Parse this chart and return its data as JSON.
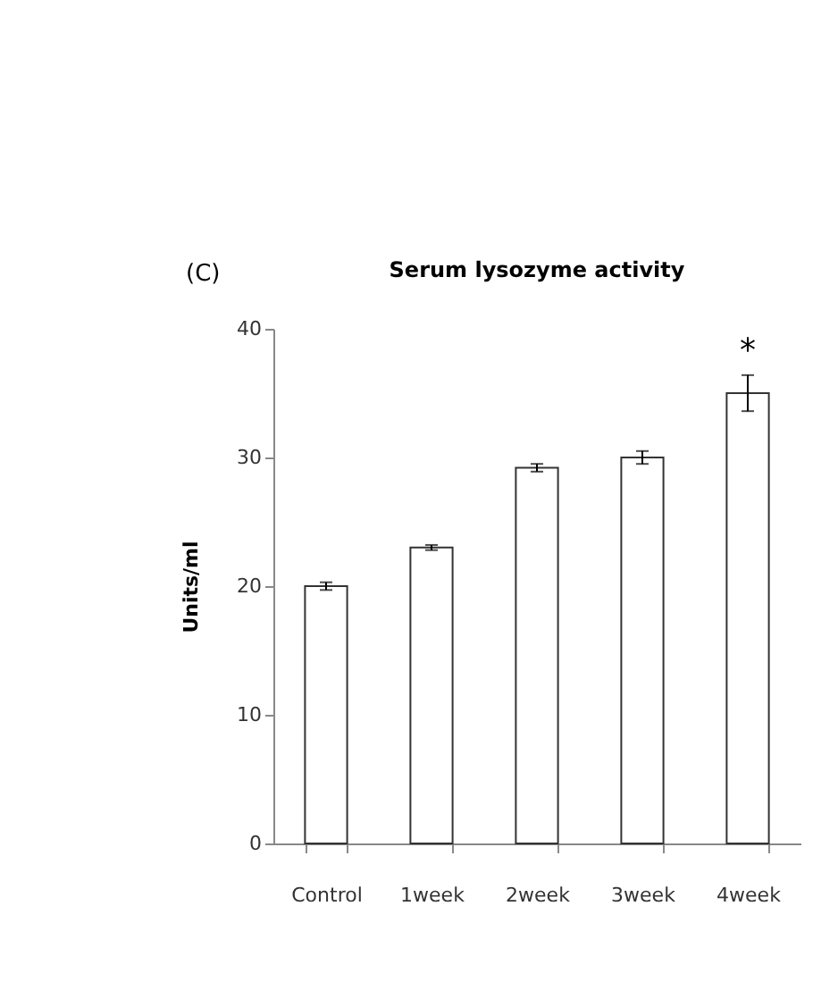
{
  "chart_data": {
    "type": "bar",
    "title": "Serum lysozyme activity",
    "ylabel": "Units/ml",
    "categories": [
      "Control",
      "1week",
      "2week",
      "3week",
      "4week"
    ],
    "series": [
      {
        "color": "#ffffff",
        "values": [
          20,
          23,
          29.2,
          30,
          35
        ],
        "errors": [
          0.3,
          0.2,
          0.3,
          0.5,
          1.4
        ]
      }
    ],
    "ylim": [
      0,
      40
    ],
    "yticks": [
      0,
      10,
      20,
      30,
      40
    ],
    "grid": false,
    "annotations": [
      "(C)",
      "*"
    ]
  }
}
